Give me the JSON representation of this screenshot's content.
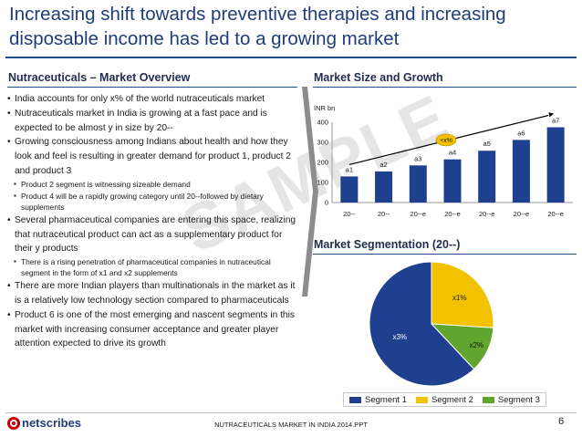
{
  "title": "Increasing shift towards preventive therapies and increasing disposable income has led to a growing market",
  "left_section": {
    "heading": "Nutraceuticals – Market Overview",
    "bullets": [
      {
        "text": "India accounts for only x% of the world nutraceuticals market",
        "sub": []
      },
      {
        "text": "Nutraceuticals market in India is growing at a fast pace and is expected to be almost y in size by 20--",
        "sub": []
      },
      {
        "text": "Growing consciousness among Indians about health and how they look and feel is resulting in greater demand for product 1, product 2 and product 3",
        "sub": [
          "Product 2 segment is witnessing sizeable demand",
          "Product 4 will be a rapidly growing category until 20--followed by dietary supplements"
        ]
      },
      {
        "text": "Several pharmaceutical companies are entering this space, realizing that nutraceutical product can act as a supplementary product for their y products",
        "sub": [
          "There is a rising penetration of pharmaceutical companies in nutraceutical segment in the form of x1 and x2 supplements"
        ]
      },
      {
        "text": "There are more Indian players than multinationals in the market as it is a relatively low technology section compared to pharmaceuticals",
        "sub": []
      },
      {
        "text": "Product 6 is one of the most emerging and nascent segments in this market with increasing consumer acceptance and greater player attention expected to drive its growth",
        "sub": []
      }
    ]
  },
  "watermark": "SAMPLE",
  "market_size": {
    "heading": "Market Size and Growth"
  },
  "segmentation": {
    "heading": "Market Segmentation (20--)"
  },
  "chart_data": [
    {
      "type": "bar",
      "title": "Market Size and Growth",
      "ylabel": "INR bn",
      "xlabel": "",
      "ylim": [
        0,
        400
      ],
      "yticks": [
        0,
        100,
        200,
        300,
        400
      ],
      "categories": [
        "20--",
        "20--",
        "20--e",
        "20--e",
        "20--e",
        "20--e",
        "20--e"
      ],
      "values": [
        130,
        155,
        185,
        215,
        258,
        312,
        375
      ],
      "data_labels": [
        "a1",
        "a2",
        "a3",
        "a4",
        "a5",
        "a6",
        "a7"
      ],
      "growth_annotation": "+x%",
      "colors": {
        "bar": "#1f3f8f",
        "arrow": "#000000",
        "annotation_fill": "#f2c200"
      }
    },
    {
      "type": "pie",
      "title": "Market Segmentation (20--)",
      "slices": [
        {
          "name": "Segment 1",
          "value": 62,
          "label": "x3%",
          "color": "#1f3f8f"
        },
        {
          "name": "Segment 2",
          "value": 26,
          "label": "x1%",
          "color": "#f2c200"
        },
        {
          "name": "Segment 3",
          "value": 12,
          "label": "x2%",
          "color": "#5fa52e"
        }
      ]
    }
  ],
  "footer": {
    "logo": "netscribes",
    "center_text": "NUTRACEUTICALS MARKET IN INDIA 2014.PPT",
    "page_number": "6"
  },
  "colors": {
    "title": "#1f3d7a",
    "rule": "#1f4e8c"
  }
}
